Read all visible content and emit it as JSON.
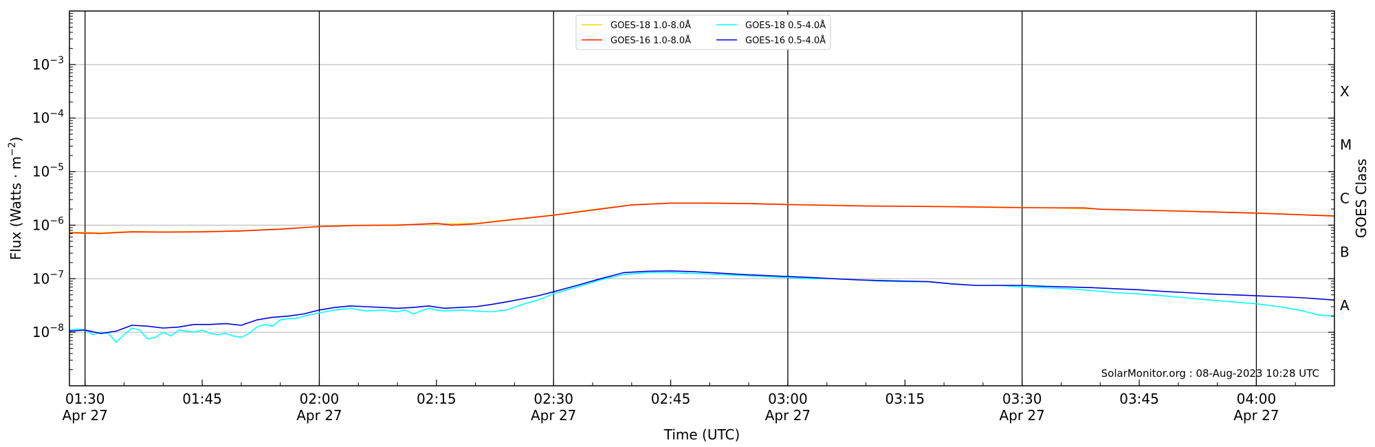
{
  "chart_data": {
    "type": "line",
    "title": "",
    "xlabel": "Time (UTC)",
    "ylabel": "Flux (Watts · m",
    "ylabel_superscript": "−2",
    "ylabel_close": ")",
    "right_ylabel": "GOES Class",
    "yscale": "log",
    "xlim": [
      "01:28",
      "04:10"
    ],
    "ylim": [
      1e-09,
      0.01
    ],
    "grid": "horizontal",
    "legend_position": "top-center",
    "x_ticks": [
      {
        "time": "01:30",
        "label": "01:30",
        "sublabel": "Apr 27",
        "major": true
      },
      {
        "time": "01:45",
        "label": "01:45",
        "sublabel": "",
        "major": false
      },
      {
        "time": "02:00",
        "label": "02:00",
        "sublabel": "Apr 27",
        "major": true
      },
      {
        "time": "02:15",
        "label": "02:15",
        "sublabel": "",
        "major": false
      },
      {
        "time": "02:30",
        "label": "02:30",
        "sublabel": "Apr 27",
        "major": true
      },
      {
        "time": "02:45",
        "label": "02:45",
        "sublabel": "",
        "major": false
      },
      {
        "time": "03:00",
        "label": "03:00",
        "sublabel": "Apr 27",
        "major": true
      },
      {
        "time": "03:15",
        "label": "03:15",
        "sublabel": "",
        "major": false
      },
      {
        "time": "03:30",
        "label": "03:30",
        "sublabel": "Apr 27",
        "major": true
      },
      {
        "time": "03:45",
        "label": "03:45",
        "sublabel": "",
        "major": false
      },
      {
        "time": "04:00",
        "label": "04:00",
        "sublabel": "Apr 27",
        "major": true
      }
    ],
    "y_ticks": [
      {
        "exp": -8,
        "base": "10",
        "sup": "−8"
      },
      {
        "exp": -7,
        "base": "10",
        "sup": "−7"
      },
      {
        "exp": -6,
        "base": "10",
        "sup": "−6"
      },
      {
        "exp": -5,
        "base": "10",
        "sup": "−5"
      },
      {
        "exp": -4,
        "base": "10",
        "sup": "−4"
      },
      {
        "exp": -3,
        "base": "10",
        "sup": "−3"
      }
    ],
    "class_labels": [
      {
        "label": "A",
        "exp": -7.5
      },
      {
        "label": "B",
        "exp": -6.5
      },
      {
        "label": "C",
        "exp": -5.5
      },
      {
        "label": "M",
        "exp": -4.5
      },
      {
        "label": "X",
        "exp": -3.5
      }
    ],
    "series": [
      {
        "name": "GOES-18 1.0-8.0Å",
        "color": "#FFD700",
        "x": [
          "01:28",
          "01:32",
          "01:36",
          "01:40",
          "01:45",
          "01:50",
          "01:55",
          "02:00",
          "02:05",
          "02:10",
          "02:15",
          "02:20",
          "02:25",
          "02:30",
          "02:35",
          "02:40",
          "02:45",
          "02:50",
          "02:55",
          "03:00",
          "03:10",
          "03:20",
          "03:30",
          "03:40",
          "03:50",
          "04:00",
          "04:10"
        ],
        "y": [
          7.4e-07,
          7.2e-07,
          7.6e-07,
          7.5e-07,
          7.6e-07,
          7.9e-07,
          8.5e-07,
          9.5e-07,
          1e-06,
          1.02e-06,
          1.05e-06,
          1.08e-06,
          1.3e-06,
          1.55e-06,
          1.95e-06,
          2.4e-06,
          2.6e-06,
          2.6e-06,
          2.55e-06,
          2.45e-06,
          2.3e-06,
          2.25e-06,
          2.15e-06,
          2e-06,
          1.85e-06,
          1.7e-06,
          1.5e-06
        ]
      },
      {
        "name": "GOES-16 1.0-8.0Å",
        "color": "#FF2200",
        "x": [
          "01:28",
          "01:32",
          "01:36",
          "01:40",
          "01:45",
          "01:50",
          "01:55",
          "02:00",
          "02:05",
          "02:10",
          "02:12",
          "02:15",
          "02:17",
          "02:20",
          "02:25",
          "02:30",
          "02:35",
          "02:40",
          "02:45",
          "02:50",
          "02:55",
          "03:00",
          "03:10",
          "03:20",
          "03:30",
          "03:38",
          "03:40",
          "03:50",
          "04:00",
          "04:10"
        ],
        "y": [
          7.2e-07,
          7e-07,
          7.5e-07,
          7.4e-07,
          7.5e-07,
          7.8e-07,
          8.4e-07,
          9.4e-07,
          9.9e-07,
          1e-06,
          1.03e-06,
          1.08e-06,
          1e-06,
          1.06e-06,
          1.28e-06,
          1.53e-06,
          1.92e-06,
          2.38e-06,
          2.58e-06,
          2.58e-06,
          2.52e-06,
          2.42e-06,
          2.28e-06,
          2.22e-06,
          2.12e-06,
          2.1e-06,
          1.98e-06,
          1.83e-06,
          1.68e-06,
          1.48e-06
        ]
      },
      {
        "name": "GOES-18 0.5-4.0Å",
        "color": "#00FFFF",
        "x": [
          "01:28",
          "01:29",
          "01:30",
          "01:31",
          "01:32",
          "01:33",
          "01:34",
          "01:35",
          "01:36",
          "01:37",
          "01:38",
          "01:39",
          "01:40",
          "01:41",
          "01:42",
          "01:43",
          "01:44",
          "01:45",
          "01:46",
          "01:47",
          "01:48",
          "01:49",
          "01:50",
          "01:51",
          "01:52",
          "01:53",
          "01:54",
          "01:55",
          "01:56",
          "01:57",
          "01:58",
          "02:00",
          "02:02",
          "02:04",
          "02:06",
          "02:08",
          "02:10",
          "02:11",
          "02:12",
          "02:13",
          "02:14",
          "02:15",
          "02:16",
          "02:18",
          "02:20",
          "02:22",
          "02:24",
          "02:26",
          "02:28",
          "02:30",
          "02:33",
          "02:36",
          "02:39",
          "02:42",
          "02:45",
          "02:48",
          "02:51",
          "02:54",
          "02:57",
          "03:00",
          "03:03",
          "03:06",
          "03:09",
          "03:12",
          "03:15",
          "03:18",
          "03:21",
          "03:24",
          "03:27",
          "03:30",
          "03:33",
          "03:36",
          "03:39",
          "03:42",
          "03:45",
          "03:48",
          "03:51",
          "03:54",
          "03:57",
          "04:00",
          "04:03",
          "04:06",
          "04:08",
          "04:10"
        ],
        "y": [
          1.1e-08,
          1.15e-08,
          1.1e-08,
          9e-09,
          1e-08,
          9.5e-09,
          6.5e-09,
          9e-09,
          1.2e-08,
          1.1e-08,
          7.5e-09,
          8e-09,
          1e-08,
          8.5e-09,
          1.1e-08,
          1.05e-08,
          1e-08,
          1.1e-08,
          9.5e-09,
          9e-09,
          9.5e-09,
          8.5e-09,
          8e-09,
          9.5e-09,
          1.25e-08,
          1.4e-08,
          1.3e-08,
          1.7e-08,
          1.8e-08,
          1.8e-08,
          2e-08,
          2.3e-08,
          2.6e-08,
          2.8e-08,
          2.5e-08,
          2.6e-08,
          2.4e-08,
          2.6e-08,
          2.2e-08,
          2.5e-08,
          2.8e-08,
          2.6e-08,
          2.5e-08,
          2.6e-08,
          2.5e-08,
          2.4e-08,
          2.6e-08,
          3.3e-08,
          4e-08,
          5.2e-08,
          7e-08,
          9.5e-08,
          1.2e-07,
          1.3e-07,
          1.3e-07,
          1.25e-07,
          1.2e-07,
          1.15e-07,
          1.1e-07,
          1.05e-07,
          1e-07,
          1e-07,
          9.5e-08,
          9e-08,
          8.8e-08,
          8.8e-08,
          8e-08,
          7.5e-08,
          7.5e-08,
          7e-08,
          6.8e-08,
          6.5e-08,
          6e-08,
          5.5e-08,
          5.2e-08,
          4.8e-08,
          4.4e-08,
          4e-08,
          3.7e-08,
          3.4e-08,
          3e-08,
          2.5e-08,
          2.1e-08,
          2e-08
        ]
      },
      {
        "name": "GOES-16 0.5-4.0Å",
        "color": "#0000DD",
        "x": [
          "01:28",
          "01:30",
          "01:32",
          "01:34",
          "01:36",
          "01:38",
          "01:40",
          "01:42",
          "01:44",
          "01:46",
          "01:48",
          "01:50",
          "01:52",
          "01:54",
          "01:56",
          "01:58",
          "02:00",
          "02:02",
          "02:04",
          "02:06",
          "02:08",
          "02:10",
          "02:12",
          "02:14",
          "02:16",
          "02:18",
          "02:20",
          "02:22",
          "02:24",
          "02:26",
          "02:28",
          "02:30",
          "02:33",
          "02:36",
          "02:39",
          "02:42",
          "02:45",
          "02:48",
          "02:51",
          "02:54",
          "02:57",
          "03:00",
          "03:03",
          "03:06",
          "03:09",
          "03:12",
          "03:15",
          "03:18",
          "03:21",
          "03:24",
          "03:27",
          "03:30",
          "03:33",
          "03:36",
          "03:39",
          "03:42",
          "03:45",
          "03:48",
          "03:51",
          "03:54",
          "03:57",
          "04:00",
          "04:03",
          "04:06",
          "04:10"
        ],
        "y": [
          1.05e-08,
          1.1e-08,
          9.5e-09,
          1.05e-08,
          1.35e-08,
          1.3e-08,
          1.2e-08,
          1.25e-08,
          1.4e-08,
          1.4e-08,
          1.45e-08,
          1.35e-08,
          1.7e-08,
          1.9e-08,
          2e-08,
          2.2e-08,
          2.6e-08,
          2.9e-08,
          3.1e-08,
          3e-08,
          2.9e-08,
          2.8e-08,
          2.9e-08,
          3.1e-08,
          2.8e-08,
          2.9e-08,
          3e-08,
          3.3e-08,
          3.7e-08,
          4.2e-08,
          4.8e-08,
          5.7e-08,
          7.5e-08,
          1e-07,
          1.3e-07,
          1.38e-07,
          1.4e-07,
          1.35e-07,
          1.28e-07,
          1.2e-07,
          1.15e-07,
          1.1e-07,
          1.05e-07,
          1e-07,
          9.5e-08,
          9.2e-08,
          9e-08,
          8.8e-08,
          8e-08,
          7.5e-08,
          7.5e-08,
          7.5e-08,
          7.2e-08,
          7e-08,
          6.8e-08,
          6.5e-08,
          6.2e-08,
          5.8e-08,
          5.5e-08,
          5.2e-08,
          5e-08,
          4.8e-08,
          4.6e-08,
          4.4e-08,
          4e-08
        ]
      }
    ],
    "annotation": "SolarMonitor.org : 08-Aug-2023 10:28 UTC"
  }
}
